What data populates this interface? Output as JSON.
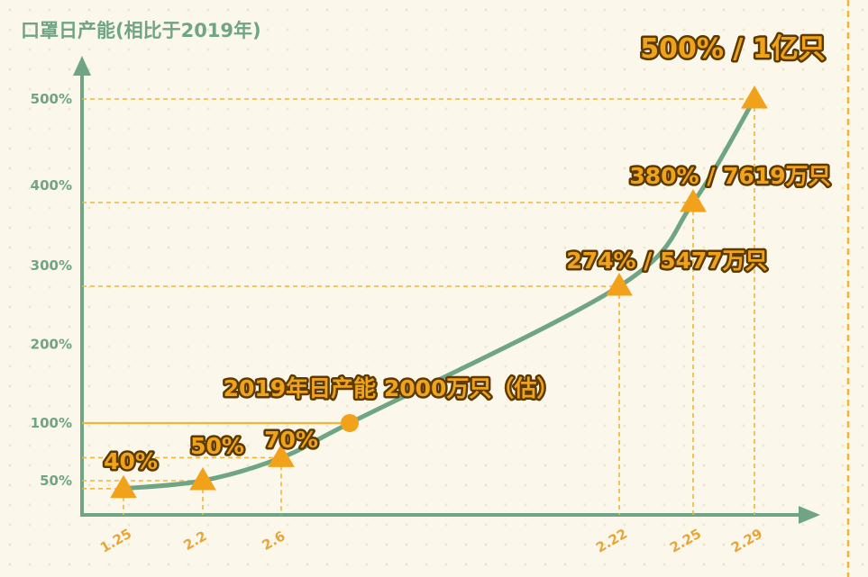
{
  "chart_data": {
    "type": "line",
    "title": "口罩日产能(相比于2019年)",
    "categories": [
      "1.25",
      "2.2",
      "2.6",
      "2.22",
      "2.25",
      "2.29"
    ],
    "series": [
      {
        "values": [
          40,
          50,
          70,
          274,
          380,
          500
        ]
      }
    ],
    "data_labels": [
      "40%",
      "50%",
      "70%",
      "274% / 5477万只",
      "380% / 7619万只",
      "500% / 1亿只"
    ],
    "y_ticks": [
      "50%",
      "100%",
      "200%",
      "300%",
      "400%",
      "500%"
    ],
    "reference_point": {
      "value": 100,
      "label": "2019年日产能 2000万只（估）"
    },
    "ylim": [
      0,
      500
    ],
    "grid": false,
    "legend": "none"
  },
  "colors": {
    "background": "#fbf7ea",
    "axis": "#6fa585",
    "line": "#6fa585",
    "marker": "#f2a21a",
    "guide": "#f0b53a",
    "label_fill": "#f0a21a",
    "label_outline": "#5a3a00",
    "right_border": "#f0b53a"
  }
}
